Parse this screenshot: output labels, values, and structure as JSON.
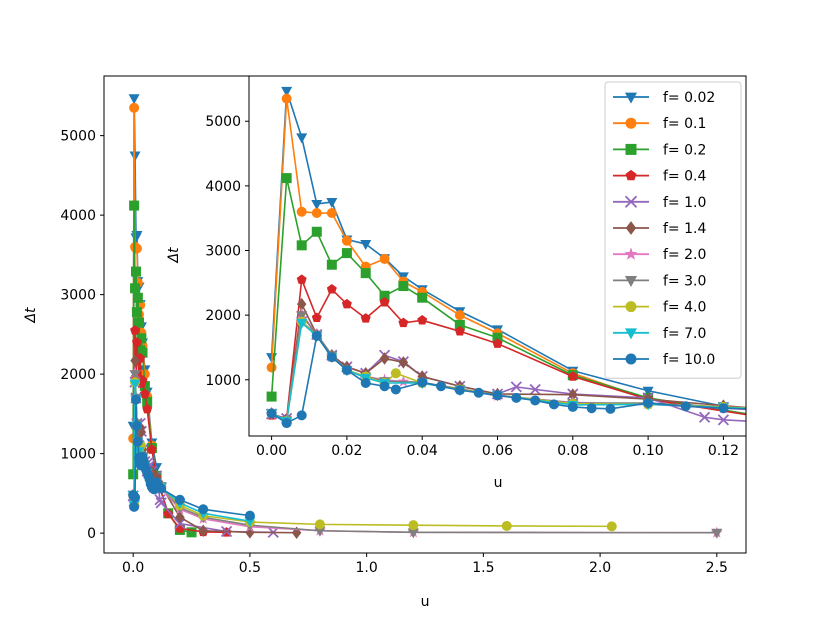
{
  "chart_data": [
    {
      "id": "main",
      "type": "line",
      "title": "",
      "xlabel": "u",
      "ylabel": "Δt",
      "xlim": [
        -0.125,
        2.625
      ],
      "ylim": [
        -250,
        5750
      ],
      "xticks": [
        0.0,
        0.5,
        1.0,
        1.5,
        2.0,
        2.5
      ],
      "xtick_labels": [
        "0.0",
        "0.5",
        "1.0",
        "1.5",
        "2.0",
        "2.5"
      ],
      "yticks": [
        0,
        1000,
        2000,
        3000,
        4000,
        5000
      ],
      "ytick_labels": [
        "0",
        "1000",
        "2000",
        "3000",
        "4000",
        "5000"
      ],
      "grid": false,
      "series": [
        {
          "name": "f= 0.02",
          "color": "#1f77b4",
          "marker": "triangle_down",
          "x": [
            0.0,
            0.004,
            0.008,
            0.012,
            0.016,
            0.02,
            0.025,
            0.03,
            0.035,
            0.04,
            0.05,
            0.06,
            0.08,
            0.1,
            0.12
          ],
          "y": [
            1350,
            5470,
            4750,
            3720,
            3750,
            3170,
            3100,
            2880,
            2600,
            2400,
            2060,
            1780,
            1140,
            830,
            590
          ]
        },
        {
          "name": "f= 0.1",
          "color": "#ff7f0e",
          "marker": "circle",
          "x": [
            0.0,
            0.004,
            0.008,
            0.012,
            0.016,
            0.02,
            0.025,
            0.03,
            0.035,
            0.04,
            0.05,
            0.06,
            0.08,
            0.1
          ],
          "y": [
            1190,
            5350,
            3600,
            3580,
            3580,
            3150,
            2750,
            2870,
            2520,
            2360,
            2000,
            1720,
            1100,
            700
          ]
        },
        {
          "name": "f= 0.2",
          "color": "#2ca02c",
          "marker": "square",
          "x": [
            0.0,
            0.004,
            0.008,
            0.012,
            0.016,
            0.02,
            0.025,
            0.03,
            0.035,
            0.04,
            0.05,
            0.06,
            0.08,
            0.1,
            0.15,
            0.2,
            0.25
          ],
          "y": [
            740,
            4120,
            3080,
            3290,
            2780,
            2960,
            2650,
            2300,
            2450,
            2270,
            1850,
            1650,
            1070,
            720,
            250,
            40,
            10
          ]
        },
        {
          "name": "f= 0.4",
          "color": "#d62728",
          "marker": "pentagon",
          "x": [
            0.0,
            0.004,
            0.008,
            0.012,
            0.016,
            0.02,
            0.025,
            0.03,
            0.035,
            0.04,
            0.05,
            0.06,
            0.08,
            0.1,
            0.15,
            0.2,
            0.3,
            0.4
          ],
          "y": [
            450,
            400,
            2550,
            1960,
            2400,
            2170,
            1950,
            2200,
            1880,
            1920,
            1750,
            1560,
            1050,
            700,
            240,
            60,
            15,
            10
          ]
        },
        {
          "name": "f= 1.0",
          "color": "#9467bd",
          "marker": "x",
          "x": [
            0.0,
            0.004,
            0.008,
            0.012,
            0.016,
            0.02,
            0.025,
            0.03,
            0.035,
            0.04,
            0.05,
            0.06,
            0.065,
            0.07,
            0.08,
            0.1,
            0.115,
            0.12,
            0.2,
            0.4,
            0.6
          ],
          "y": [
            470,
            400,
            1900,
            1700,
            1380,
            1200,
            1100,
            1380,
            1280,
            1050,
            900,
            780,
            890,
            850,
            780,
            720,
            420,
            380,
            120,
            20,
            10
          ]
        },
        {
          "name": "f= 1.4",
          "color": "#8c564b",
          "marker": "diamond",
          "x": [
            0.0,
            0.004,
            0.008,
            0.012,
            0.016,
            0.02,
            0.025,
            0.03,
            0.035,
            0.04,
            0.05,
            0.06,
            0.08,
            0.1,
            0.12,
            0.2,
            0.3,
            0.5,
            0.7
          ],
          "y": [
            480,
            380,
            2170,
            1700,
            1380,
            1200,
            1100,
            1330,
            1270,
            1050,
            900,
            780,
            770,
            700,
            600,
            200,
            30,
            10,
            5
          ]
        },
        {
          "name": "f= 2.0",
          "color": "#e377c2",
          "marker": "star",
          "x": [
            0.0,
            0.004,
            0.008,
            0.012,
            0.016,
            0.02,
            0.025,
            0.03,
            0.035,
            0.04,
            0.05,
            0.06,
            0.08,
            0.1,
            0.12,
            0.2,
            0.3,
            0.5,
            0.8,
            1.2,
            2.5
          ],
          "y": [
            470,
            370,
            2020,
            1700,
            1350,
            1150,
            1050,
            1000,
            970,
            950,
            850,
            750,
            650,
            620,
            560,
            300,
            180,
            80,
            30,
            10,
            5
          ]
        },
        {
          "name": "f= 3.0",
          "color": "#7f7f7f",
          "marker": "triangle_down",
          "x": [
            0.0,
            0.004,
            0.008,
            0.012,
            0.016,
            0.02,
            0.025,
            0.03,
            0.04,
            0.05,
            0.06,
            0.08,
            0.1,
            0.12,
            0.2,
            0.3,
            0.5,
            0.8,
            1.2,
            2.5
          ],
          "y": [
            480,
            370,
            2000,
            1700,
            1380,
            1150,
            1050,
            980,
            960,
            860,
            760,
            640,
            640,
            580,
            320,
            200,
            100,
            30,
            10,
            5
          ]
        },
        {
          "name": "f= 4.0",
          "color": "#bcbd22",
          "marker": "circle",
          "x": [
            0.0,
            0.004,
            0.008,
            0.012,
            0.016,
            0.02,
            0.025,
            0.03,
            0.033,
            0.04,
            0.05,
            0.06,
            0.08,
            0.1,
            0.12,
            0.2,
            0.3,
            0.5,
            0.8,
            1.2,
            1.6,
            2.05
          ],
          "y": [
            480,
            360,
            1900,
            1680,
            1350,
            1150,
            1050,
            950,
            1100,
            950,
            850,
            760,
            630,
            620,
            580,
            350,
            220,
            140,
            110,
            100,
            90,
            85
          ]
        },
        {
          "name": "f= 7.0",
          "color": "#17becf",
          "marker": "triangle_down",
          "x": [
            0.0,
            0.004,
            0.008,
            0.012,
            0.016,
            0.02,
            0.025,
            0.03,
            0.04,
            0.05,
            0.06,
            0.08,
            0.1,
            0.12,
            0.2,
            0.3,
            0.5
          ],
          "y": [
            480,
            360,
            1880,
            1680,
            1350,
            1150,
            1030,
            950,
            950,
            840,
            760,
            610,
            620,
            570,
            380,
            250,
            150
          ]
        },
        {
          "name": "f= 10.0",
          "color": "#1f77b4",
          "marker": "circle",
          "x": [
            0.0,
            0.004,
            0.008,
            0.012,
            0.016,
            0.02,
            0.025,
            0.03,
            0.033,
            0.04,
            0.045,
            0.05,
            0.055,
            0.06,
            0.065,
            0.07,
            0.075,
            0.08,
            0.085,
            0.09,
            0.1,
            0.11,
            0.12,
            0.2,
            0.3,
            0.5
          ],
          "y": [
            480,
            330,
            450,
            1680,
            1350,
            1150,
            950,
            900,
            850,
            960,
            900,
            840,
            800,
            760,
            720,
            680,
            620,
            580,
            560,
            550,
            640,
            590,
            560,
            420,
            300,
            220
          ]
        }
      ]
    },
    {
      "id": "inset",
      "type": "line",
      "title": "",
      "xlabel": "u",
      "ylabel": "Δt",
      "xlim": [
        -0.006,
        0.126
      ],
      "ylim": [
        130,
        5700
      ],
      "xticks": [
        0.0,
        0.02,
        0.04,
        0.06,
        0.08,
        0.1,
        0.12
      ],
      "xtick_labels": [
        "0.00",
        "0.02",
        "0.04",
        "0.06",
        "0.08",
        "0.10",
        "0.12"
      ],
      "yticks": [
        1000,
        2000,
        3000,
        4000,
        5000
      ],
      "ytick_labels": [
        "1000",
        "2000",
        "3000",
        "4000",
        "5000"
      ],
      "legend_position": "top-right",
      "series_ref": "main"
    }
  ]
}
